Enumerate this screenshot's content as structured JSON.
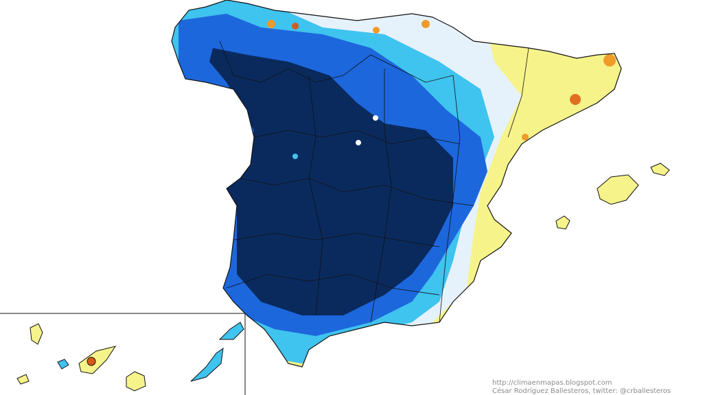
{
  "credits": {
    "url": "http://climaenmapas.blogspot.com",
    "author": "César Rodríguez Ballesteros, twitter: @crballesteros"
  }
}
